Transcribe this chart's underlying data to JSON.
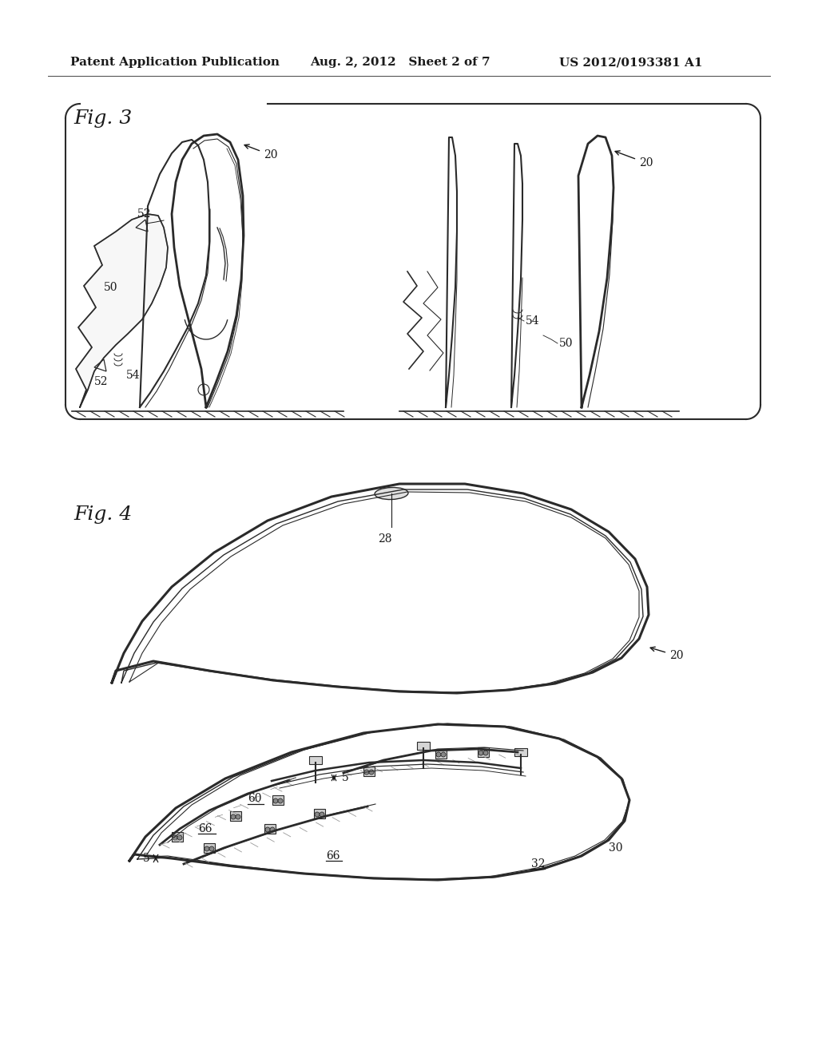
{
  "bg_color": "#ffffff",
  "header_left": "Patent Application Publication",
  "header_mid": "Aug. 2, 2012   Sheet 2 of 7",
  "header_right": "US 2012/0193381 A1",
  "fig3_label": "Fig. 3",
  "fig4_label": "Fig. 4",
  "header_fontsize": 11,
  "fig_label_fontsize": 18,
  "ref_fontsize": 10,
  "text_color": "#1a1a1a",
  "line_color": "#2a2a2a"
}
